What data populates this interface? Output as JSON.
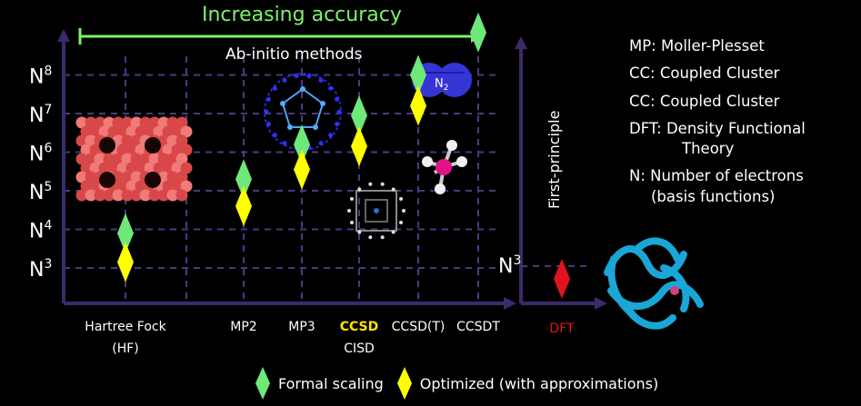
{
  "header": {
    "accuracy_label": "Increasing accuracy",
    "abinitio_label": "Ab-initio methods",
    "first_principle_label": "First-principle"
  },
  "definitions": [
    {
      "id": "mp",
      "text": "MP: Moller-Plesset"
    },
    {
      "id": "cc1",
      "text": "CC:  Coupled Cluster"
    },
    {
      "id": "cc2",
      "text": "CC:  Coupled Cluster"
    },
    {
      "id": "dft1",
      "text": "DFT:  Density Functional"
    },
    {
      "id": "dft2",
      "text": "Theory"
    },
    {
      "id": "n1",
      "text": "N:  Number of electrons"
    },
    {
      "id": "n2",
      "text": "(basis functions)"
    }
  ],
  "molecule_label": "N2",
  "legend": {
    "formal": "Formal scaling",
    "optimized": "Optimized (with approximations)"
  },
  "colors": {
    "formal": "#6ee87a",
    "optimized": "#ffff00",
    "dft": "#e0141e",
    "axis": "#3d2a6b",
    "grid": "#4a3a80",
    "accuracy": "#7cf26a",
    "ccsd_label": "#ffe400",
    "dft_label": "#e0141e"
  },
  "chart_data": [
    {
      "type": "scatter",
      "title": "",
      "y_axis": {
        "ticks": [
          "N3",
          "N4",
          "N5",
          "N6",
          "N7",
          "N8"
        ],
        "values": [
          3,
          4,
          5,
          6,
          7,
          8
        ]
      },
      "categories": [
        {
          "id": "hf",
          "line1": "Hartree Fock",
          "line2": "(HF)"
        },
        {
          "id": "mp2",
          "line1": "MP2",
          "line2": ""
        },
        {
          "id": "mp3",
          "line1": "MP3",
          "line2": ""
        },
        {
          "id": "ccsd",
          "line1": "CCSD",
          "line2": "CISD"
        },
        {
          "id": "ccsdt",
          "line1": "CCSD(T)",
          "line2": ""
        },
        {
          "id": "ccsdt2",
          "line1": "CCSDT",
          "line2": ""
        }
      ],
      "series": [
        {
          "name": "Formal scaling",
          "values": [
            {
              "x": "hf",
              "y": 3.9
            },
            {
              "x": "mp2",
              "y": 5.3
            },
            {
              "x": "mp3",
              "y": 6.2
            },
            {
              "x": "ccsd",
              "y": 6.95
            },
            {
              "x": "ccsdt",
              "y": 8.0
            },
            {
              "x": "ccsdt2",
              "y": 9.1
            }
          ]
        },
        {
          "name": "Optimized (with approximations)",
          "values": [
            {
              "x": "hf",
              "y": 3.15
            },
            {
              "x": "mp2",
              "y": 4.6
            },
            {
              "x": "mp3",
              "y": 5.55
            },
            {
              "x": "ccsd",
              "y": 6.15
            },
            {
              "x": "ccsdt",
              "y": 7.2
            }
          ]
        }
      ]
    },
    {
      "type": "scatter",
      "title": "",
      "y_axis": {
        "ticks": [
          "N3"
        ],
        "values": [
          3
        ]
      },
      "categories": [
        {
          "id": "dft",
          "line1": "DFT",
          "line2": ""
        }
      ],
      "series": [
        {
          "name": "DFT",
          "values": [
            {
              "x": "dft",
              "y": 2.9
            }
          ]
        }
      ]
    }
  ]
}
